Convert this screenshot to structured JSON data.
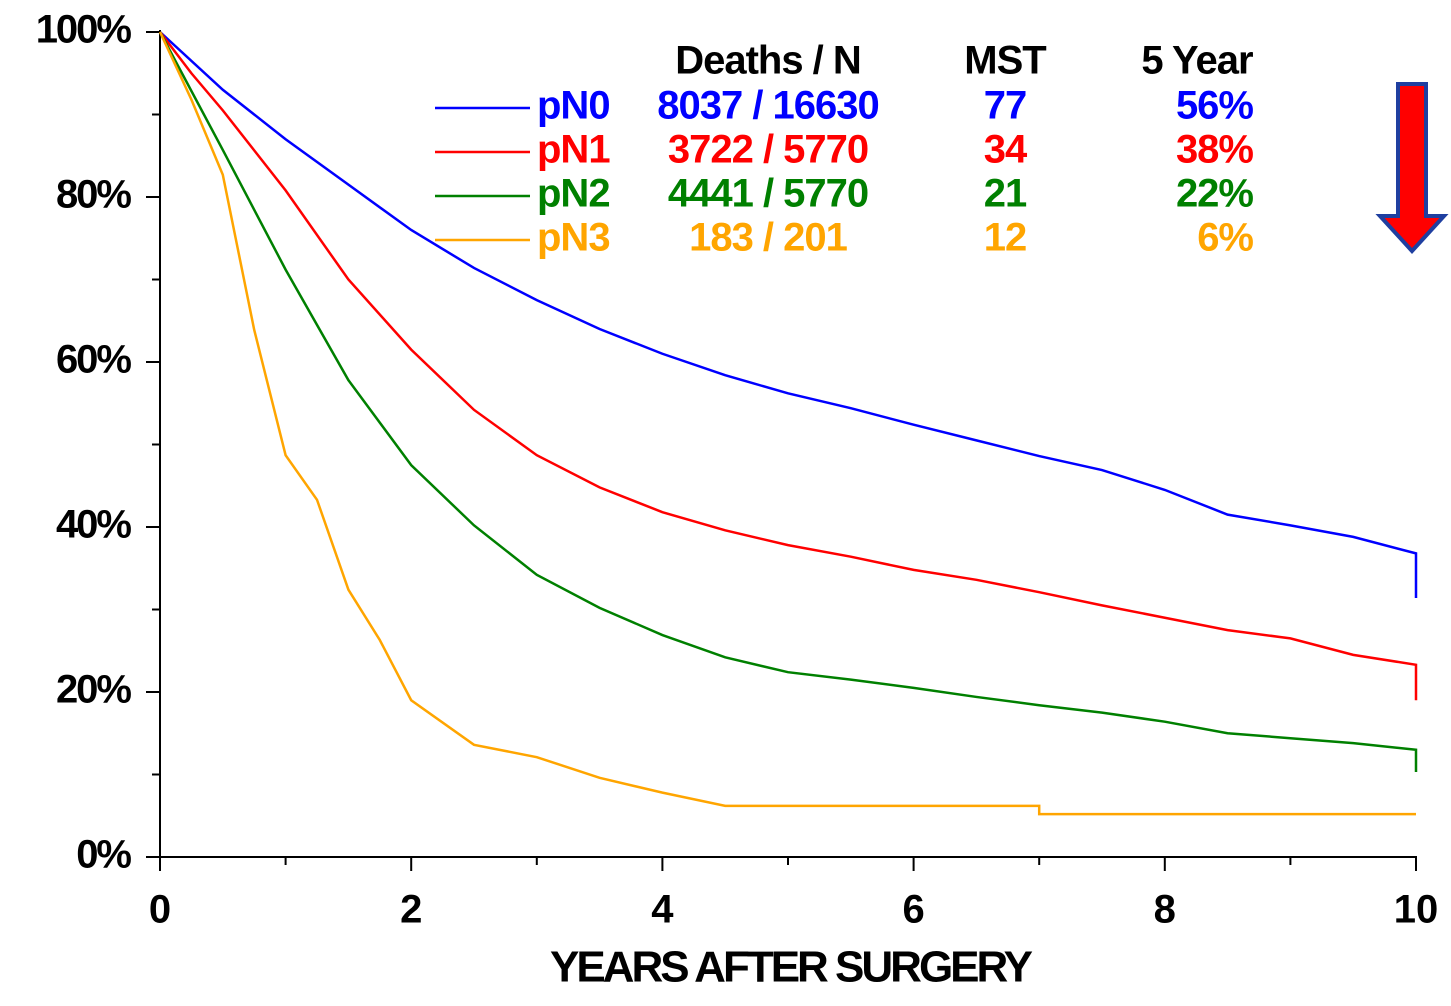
{
  "chart_data": {
    "type": "line",
    "x_label": "YEARS AFTER SURGERY",
    "xlim": [
      0,
      10
    ],
    "xticks": [
      0,
      2,
      4,
      6,
      8,
      10
    ],
    "xticks_minor": [
      1,
      3,
      5,
      7,
      9
    ],
    "ylim": [
      0,
      100
    ],
    "yticks": [
      {
        "value": 0,
        "label": "0%"
      },
      {
        "value": 20,
        "label": "20%"
      },
      {
        "value": 40,
        "label": "40%"
      },
      {
        "value": 60,
        "label": "60%"
      },
      {
        "value": 80,
        "label": "80%"
      },
      {
        "value": 100,
        "label": "100%"
      }
    ],
    "yticks_minor": [
      10,
      30,
      50,
      70,
      90
    ],
    "legend_headers": [
      "Deaths / N",
      "MST",
      "5 Year"
    ],
    "series": [
      {
        "name": "pN0",
        "color": "#0000ff",
        "deaths_n": "8037 / 16630",
        "mst": 77,
        "five_year": 56,
        "five_year_label": "56%",
        "x": [
          0,
          0.5,
          1,
          1.5,
          2,
          2.5,
          3,
          3.5,
          4,
          4.5,
          5,
          5.5,
          6,
          6.5,
          7,
          7.5,
          8,
          8.5,
          9,
          9.5,
          10,
          10
        ],
        "values": [
          100,
          93,
          87,
          81.5,
          76,
          71.4,
          67.5,
          64,
          61,
          58.4,
          56.2,
          54.4,
          52.4,
          50.5,
          48.6,
          46.9,
          44.5,
          41.5,
          40.2,
          38.8,
          36.8,
          31.4
        ]
      },
      {
        "name": "pN1",
        "color": "#ff0000",
        "deaths_n": "3722 / 5770",
        "mst": 34,
        "five_year": 38,
        "five_year_label": "38%",
        "x": [
          0,
          0.25,
          0.5,
          1,
          1.5,
          2,
          2.5,
          3,
          3.5,
          4,
          4.5,
          5,
          5.5,
          6,
          6.5,
          7,
          7.5,
          8,
          8.5,
          9,
          9.5,
          10,
          10
        ],
        "values": [
          100,
          95,
          90.5,
          80.8,
          70,
          61.5,
          54.2,
          48.7,
          44.8,
          41.8,
          39.6,
          37.8,
          36.4,
          34.8,
          33.6,
          32.1,
          30.5,
          29,
          27.5,
          26.5,
          24.5,
          23.3,
          19
        ]
      },
      {
        "name": "pN2",
        "color": "#008000",
        "deaths_n": "4441 / 5770",
        "mst": 21,
        "five_year": 22,
        "five_year_label": "22%",
        "x": [
          0,
          0.5,
          1,
          1.5,
          2,
          2.5,
          3,
          3.5,
          4,
          4.5,
          5,
          5.5,
          6,
          6.5,
          7,
          7.5,
          8,
          8.5,
          9,
          9.5,
          10,
          10
        ],
        "values": [
          100,
          85.7,
          71.2,
          57.8,
          47.5,
          40.2,
          34.2,
          30.2,
          26.9,
          24.2,
          22.4,
          21.5,
          20.5,
          19.4,
          18.4,
          17.5,
          16.4,
          15,
          14.4,
          13.8,
          13,
          10.3
        ]
      },
      {
        "name": "pN3",
        "color": "#ffa500",
        "deaths_n": "183 / 201",
        "mst": 12,
        "five_year": 6,
        "five_year_label": "6%",
        "x": [
          0,
          0.25,
          0.5,
          0.75,
          1,
          1.25,
          1.5,
          1.75,
          2,
          2.5,
          3,
          3.5,
          4,
          4.5,
          7,
          7,
          10
        ],
        "values": [
          100,
          91.8,
          82.7,
          63.9,
          48.7,
          43.3,
          32.4,
          26.3,
          19,
          13.6,
          12.1,
          9.6,
          7.8,
          6.2,
          6.2,
          5.2,
          5.2
        ]
      }
    ]
  }
}
